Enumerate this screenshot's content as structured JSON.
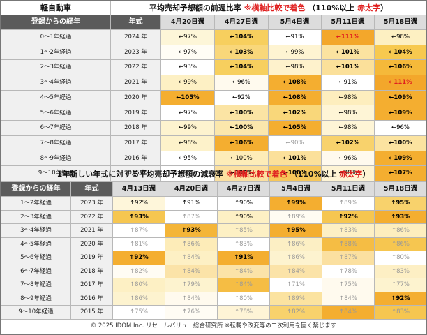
{
  "top": {
    "category": "軽自動車",
    "title_main": "平均売却予想額の前週比率",
    "title_note": "※横軸比較で着色",
    "title_rule": "（110%以上",
    "title_rule_red": "赤太字",
    "title_rule_end": "）",
    "col_age": "登録からの経年",
    "col_year": "年式",
    "weeks": [
      "4月20日週",
      "4月27日週",
      "5月4日週",
      "5月11日週",
      "5月18日週"
    ],
    "rows": [
      {
        "age": "0～1年経過",
        "year": "2024 年",
        "cells": [
          {
            "t": "←97%",
            "bg": "#fdf6d8",
            "b": false,
            "r": false,
            "g": false
          },
          {
            "t": "←104%",
            "bg": "#f7cf5e",
            "b": true,
            "r": false,
            "g": false
          },
          {
            "t": "←91%",
            "bg": "#ffffff",
            "b": false,
            "r": false,
            "g": false
          },
          {
            "t": "←111%",
            "bg": "#f3a72b",
            "b": true,
            "r": true,
            "g": false
          },
          {
            "t": "←98%",
            "bg": "#fdf0c2",
            "b": false,
            "r": false,
            "g": false
          }
        ]
      },
      {
        "age": "1～2年経過",
        "year": "2023 年",
        "cells": [
          {
            "t": "←97%",
            "bg": "#fffdf5",
            "b": false,
            "r": false,
            "g": false
          },
          {
            "t": "←103%",
            "bg": "#f9d77a",
            "b": true,
            "r": false,
            "g": false
          },
          {
            "t": "←99%",
            "bg": "#fef4d2",
            "b": false,
            "r": false,
            "g": false
          },
          {
            "t": "←101%",
            "bg": "#fbe3a0",
            "b": true,
            "r": false,
            "g": false
          },
          {
            "t": "←104%",
            "bg": "#f7c94f",
            "b": true,
            "r": false,
            "g": false
          }
        ]
      },
      {
        "age": "2～3年経過",
        "year": "2022 年",
        "cells": [
          {
            "t": "←93%",
            "bg": "#ffffff",
            "b": false,
            "r": false,
            "g": false
          },
          {
            "t": "←104%",
            "bg": "#f7cf5e",
            "b": true,
            "r": false,
            "g": false
          },
          {
            "t": "←98%",
            "bg": "#fef2cc",
            "b": false,
            "r": false,
            "g": false
          },
          {
            "t": "←101%",
            "bg": "#fbe09a",
            "b": true,
            "r": false,
            "g": false
          },
          {
            "t": "←106%",
            "bg": "#f5b93a",
            "b": true,
            "r": false,
            "g": false
          }
        ]
      },
      {
        "age": "3～4年経過",
        "year": "2021 年",
        "cells": [
          {
            "t": "←99%",
            "bg": "#fdf0c4",
            "b": false,
            "r": false,
            "g": false
          },
          {
            "t": "←96%",
            "bg": "#fffaee",
            "b": false,
            "r": false,
            "g": false
          },
          {
            "t": "←108%",
            "bg": "#f4ae30",
            "b": true,
            "r": false,
            "g": false
          },
          {
            "t": "←91%",
            "bg": "#ffffff",
            "b": false,
            "r": false,
            "g": false
          },
          {
            "t": "←111%",
            "bg": "#f3a72b",
            "b": true,
            "r": true,
            "g": false
          }
        ]
      },
      {
        "age": "4～5年経過",
        "year": "2020 年",
        "cells": [
          {
            "t": "←105%",
            "bg": "#f4ae30",
            "b": true,
            "r": false,
            "g": false
          },
          {
            "t": "←92%",
            "bg": "#ffffff",
            "b": false,
            "r": false,
            "g": false
          },
          {
            "t": "←108%",
            "bg": "#f4ae30",
            "b": true,
            "r": false,
            "g": false
          },
          {
            "t": "←98%",
            "bg": "#fdeebe",
            "b": false,
            "r": false,
            "g": false
          },
          {
            "t": "←109%",
            "bg": "#f4ae30",
            "b": true,
            "r": false,
            "g": false
          }
        ]
      },
      {
        "age": "5～6年経過",
        "year": "2019 年",
        "cells": [
          {
            "t": "←97%",
            "bg": "#ffffff",
            "b": false,
            "r": false,
            "g": false
          },
          {
            "t": "←100%",
            "bg": "#fbe4a4",
            "b": true,
            "r": false,
            "g": false
          },
          {
            "t": "←102%",
            "bg": "#f9d77a",
            "b": true,
            "r": false,
            "g": false
          },
          {
            "t": "←98%",
            "bg": "#fef5d6",
            "b": false,
            "r": false,
            "g": false
          },
          {
            "t": "←109%",
            "bg": "#f4ae30",
            "b": true,
            "r": false,
            "g": false
          }
        ]
      },
      {
        "age": "6～7年経過",
        "year": "2018 年",
        "cells": [
          {
            "t": "←99%",
            "bg": "#fdf3cf",
            "b": false,
            "r": false,
            "g": false
          },
          {
            "t": "←100%",
            "bg": "#fbe7ac",
            "b": true,
            "r": false,
            "g": false
          },
          {
            "t": "←105%",
            "bg": "#f4ae30",
            "b": true,
            "r": false,
            "g": false
          },
          {
            "t": "←98%",
            "bg": "#fef5d6",
            "b": false,
            "r": false,
            "g": false
          },
          {
            "t": "←96%",
            "bg": "#ffffff",
            "b": false,
            "r": false,
            "g": false
          }
        ]
      },
      {
        "age": "7～8年経過",
        "year": "2017 年",
        "cells": [
          {
            "t": "←98%",
            "bg": "#fdf2ca",
            "b": false,
            "r": false,
            "g": false
          },
          {
            "t": "←106%",
            "bg": "#f4ae30",
            "b": true,
            "r": false,
            "g": false
          },
          {
            "t": "←90%",
            "bg": "#ffffff",
            "b": false,
            "r": false,
            "g": true
          },
          {
            "t": "←102%",
            "bg": "#f8d26c",
            "b": true,
            "r": false,
            "g": false
          },
          {
            "t": "←100%",
            "bg": "#fbe3a0",
            "b": true,
            "r": false,
            "g": false
          }
        ]
      },
      {
        "age": "8～9年経過",
        "year": "2016 年",
        "cells": [
          {
            "t": "←95%",
            "bg": "#ffffff",
            "b": false,
            "r": false,
            "g": false
          },
          {
            "t": "←100%",
            "bg": "#fdecb8",
            "b": false,
            "r": false,
            "g": false
          },
          {
            "t": "←101%",
            "bg": "#fbe09a",
            "b": true,
            "r": false,
            "g": false
          },
          {
            "t": "←96%",
            "bg": "#fffaee",
            "b": false,
            "r": false,
            "g": false
          },
          {
            "t": "←109%",
            "bg": "#f4ae30",
            "b": true,
            "r": false,
            "g": false
          }
        ]
      },
      {
        "age": "9～10年経過",
        "year": "2015 年",
        "cells": [
          {
            "t": "←97%",
            "bg": "#ffffff",
            "b": false,
            "r": false,
            "g": false
          },
          {
            "t": "←102%",
            "bg": "#fbe0a0",
            "b": true,
            "r": false,
            "g": false
          },
          {
            "t": "←106%",
            "bg": "#f7c75a",
            "b": true,
            "r": false,
            "g": false
          },
          {
            "t": "←98%",
            "bg": "#fef4d4",
            "b": false,
            "r": false,
            "g": false
          },
          {
            "t": "←107%",
            "bg": "#f4ae30",
            "b": true,
            "r": false,
            "g": false
          }
        ]
      }
    ]
  },
  "bottom": {
    "title_main": "1年新しい年式に対する平均売却予想額の減衰率",
    "title_note": "※横軸比較で着色",
    "title_rule": "（110%以上",
    "title_rule_red": "赤太字",
    "title_rule_end": "）",
    "col_age": "登録からの経年",
    "col_year": "年式",
    "weeks": [
      "4月13日週",
      "4月20日週",
      "4月27日週",
      "5月4日週",
      "5月11日週",
      "5月18日週"
    ],
    "rows": [
      {
        "age": "1～2年経過",
        "year": "2023 年",
        "cells": [
          {
            "t": "↑92%",
            "bg": "#fef6da",
            "b": false,
            "r": false,
            "g": false
          },
          {
            "t": "↑91%",
            "bg": "#ffffff",
            "b": false,
            "r": false,
            "g": false
          },
          {
            "t": "↑90%",
            "bg": "#ffffff",
            "b": false,
            "r": false,
            "g": false
          },
          {
            "t": "↑99%",
            "bg": "#f4ae30",
            "b": true,
            "r": false,
            "g": false
          },
          {
            "t": "↑89%",
            "bg": "#ffffff",
            "b": false,
            "r": false,
            "g": true
          },
          {
            "t": "↑95%",
            "bg": "#f8d26c",
            "b": true,
            "r": false,
            "g": false
          }
        ]
      },
      {
        "age": "2～3年経過",
        "year": "2022 年",
        "cells": [
          {
            "t": "↑93%",
            "bg": "#f6c650",
            "b": true,
            "r": false,
            "g": false
          },
          {
            "t": "↑87%",
            "bg": "#ffffff",
            "b": false,
            "r": false,
            "g": true
          },
          {
            "t": "↑90%",
            "bg": "#fdf0c4",
            "b": false,
            "r": false,
            "g": false
          },
          {
            "t": "↑89%",
            "bg": "#fffcf2",
            "b": false,
            "r": false,
            "g": true
          },
          {
            "t": "↑92%",
            "bg": "#f6c650",
            "b": true,
            "r": false,
            "g": false
          },
          {
            "t": "↑93%",
            "bg": "#f4ae30",
            "b": true,
            "r": false,
            "g": false
          }
        ]
      },
      {
        "age": "3～4年経過",
        "year": "2021 年",
        "cells": [
          {
            "t": "↑87%",
            "bg": "#ffffff",
            "b": false,
            "r": false,
            "g": true
          },
          {
            "t": "↑93%",
            "bg": "#f4b538",
            "b": true,
            "r": false,
            "g": false
          },
          {
            "t": "↑85%",
            "bg": "#fdf0c4",
            "b": false,
            "r": false,
            "g": true
          },
          {
            "t": "↑95%",
            "bg": "#f4ae30",
            "b": true,
            "r": false,
            "g": false
          },
          {
            "t": "↑83%",
            "bg": "#fdf0c4",
            "b": false,
            "r": false,
            "g": true
          },
          {
            "t": "↑86%",
            "bg": "#fdeebe",
            "b": false,
            "r": false,
            "g": true
          }
        ]
      },
      {
        "age": "4～5年経過",
        "year": "2020 年",
        "cells": [
          {
            "t": "↑81%",
            "bg": "#ffffff",
            "b": false,
            "r": false,
            "g": true
          },
          {
            "t": "↑86%",
            "bg": "#fdecb8",
            "b": false,
            "r": false,
            "g": true
          },
          {
            "t": "↑83%",
            "bg": "#ffffff",
            "b": false,
            "r": false,
            "g": true
          },
          {
            "t": "↑86%",
            "bg": "#fcefc4",
            "b": false,
            "r": false,
            "g": true
          },
          {
            "t": "↑88%",
            "bg": "#f5bd44",
            "b": false,
            "r": false,
            "g": true
          },
          {
            "t": "↑86%",
            "bg": "#f6c650",
            "b": false,
            "r": false,
            "g": true
          }
        ]
      },
      {
        "age": "5～6年経過",
        "year": "2019 年",
        "cells": [
          {
            "t": "↑92%",
            "bg": "#f4ae30",
            "b": true,
            "r": false,
            "g": false
          },
          {
            "t": "↑84%",
            "bg": "#fdf0c4",
            "b": false,
            "r": false,
            "g": true
          },
          {
            "t": "↑91%",
            "bg": "#f4ae30",
            "b": true,
            "r": false,
            "g": false
          },
          {
            "t": "↑86%",
            "bg": "#fdf3cf",
            "b": false,
            "r": false,
            "g": true
          },
          {
            "t": "↑87%",
            "bg": "#fbe0a0",
            "b": false,
            "r": false,
            "g": true
          },
          {
            "t": "↑80%",
            "bg": "#ffffff",
            "b": false,
            "r": false,
            "g": true
          }
        ]
      },
      {
        "age": "6～7年経過",
        "year": "2018 年",
        "cells": [
          {
            "t": "↑82%",
            "bg": "#fffcf4",
            "b": false,
            "r": false,
            "g": true
          },
          {
            "t": "↑84%",
            "bg": "#fbe3a8",
            "b": false,
            "r": false,
            "g": true
          },
          {
            "t": "↑84%",
            "bg": "#fbe3a8",
            "b": false,
            "r": false,
            "g": true
          },
          {
            "t": "↑84%",
            "bg": "#fbe3a8",
            "b": false,
            "r": false,
            "g": true
          },
          {
            "t": "↑78%",
            "bg": "#ffffff",
            "b": false,
            "r": false,
            "g": true
          },
          {
            "t": "↑83%",
            "bg": "#fdefc4",
            "b": false,
            "r": false,
            "g": true
          }
        ]
      },
      {
        "age": "7～8年経過",
        "year": "2017 年",
        "cells": [
          {
            "t": "↑80%",
            "bg": "#fdf0c4",
            "b": false,
            "r": false,
            "g": true
          },
          {
            "t": "↑79%",
            "bg": "#fdf3cf",
            "b": false,
            "r": false,
            "g": true
          },
          {
            "t": "↑84%",
            "bg": "#f5bd44",
            "b": false,
            "r": false,
            "g": true
          },
          {
            "t": "↑71%",
            "bg": "#ffffff",
            "b": false,
            "r": false,
            "g": true
          },
          {
            "t": "↑75%",
            "bg": "#fffaee",
            "b": false,
            "r": false,
            "g": true
          },
          {
            "t": "↑77%",
            "bg": "#fdf3cf",
            "b": false,
            "r": false,
            "g": true
          }
        ]
      },
      {
        "age": "8～9年経過",
        "year": "2016 年",
        "cells": [
          {
            "t": "↑86%",
            "bg": "#fdf3cf",
            "b": false,
            "r": false,
            "g": true
          },
          {
            "t": "↑84%",
            "bg": "#fffaee",
            "b": false,
            "r": false,
            "g": true
          },
          {
            "t": "↑80%",
            "bg": "#ffffff",
            "b": false,
            "r": false,
            "g": true
          },
          {
            "t": "↑89%",
            "bg": "#fbe3a0",
            "b": false,
            "r": false,
            "g": true
          },
          {
            "t": "↑84%",
            "bg": "#fffaee",
            "b": false,
            "r": false,
            "g": true
          },
          {
            "t": "↑92%",
            "bg": "#f4ae30",
            "b": true,
            "r": false,
            "g": false
          }
        ]
      },
      {
        "age": "9～10年経過",
        "year": "2015 年",
        "cells": [
          {
            "t": "↑75%",
            "bg": "#ffffff",
            "b": false,
            "r": false,
            "g": true
          },
          {
            "t": "↑76%",
            "bg": "#fffcf4",
            "b": false,
            "r": false,
            "g": true
          },
          {
            "t": "↑78%",
            "bg": "#fef4d6",
            "b": false,
            "r": false,
            "g": true
          },
          {
            "t": "↑82%",
            "bg": "#f8d26c",
            "b": false,
            "r": false,
            "g": true
          },
          {
            "t": "↑84%",
            "bg": "#f4ae30",
            "b": false,
            "r": false,
            "g": true
          },
          {
            "t": "↑83%",
            "bg": "#f6c650",
            "b": false,
            "r": false,
            "g": true
          }
        ]
      }
    ]
  },
  "footer": "© 2025 IDOM Inc. リセールバリュー総合研究所 ※転載や改変等の二次利用を固く禁じます"
}
